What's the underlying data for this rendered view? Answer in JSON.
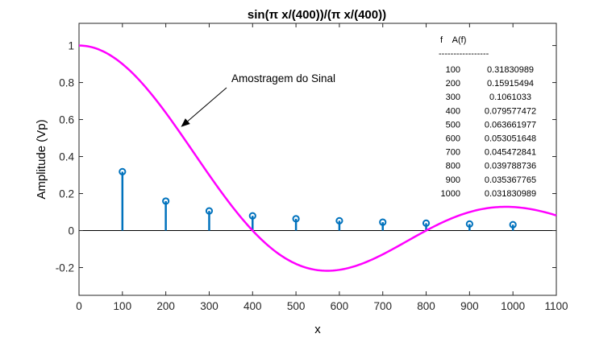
{
  "chart_data": {
    "type": "stem",
    "title": "sin(π x/(400))/(π x/(400))",
    "xlabel": "x",
    "ylabel": "Amplitude (Vp)",
    "xlim": [
      0,
      1100
    ],
    "ylim": [
      -0.35,
      1.12
    ],
    "xticks": [
      0,
      100,
      200,
      300,
      400,
      500,
      600,
      700,
      800,
      900,
      1000,
      1100
    ],
    "yticks": [
      -0.2,
      0,
      0.2,
      0.4,
      0.6,
      0.8,
      1
    ],
    "ytick_labels": [
      "-0.2",
      "0",
      "0.2",
      "0.4",
      "0.6",
      "0.8",
      "1"
    ],
    "grid": false,
    "series": [
      {
        "kind": "curve",
        "function": "sin(pi*x/400)/(pi*x/400)",
        "x_range": [
          0,
          1100
        ],
        "color": "#ff00ff"
      },
      {
        "kind": "stem",
        "color": "#0072bd",
        "x": [
          100,
          200,
          300,
          400,
          500,
          600,
          700,
          800,
          900,
          1000
        ],
        "y": [
          0.31830989,
          0.15915494,
          0.1061033,
          0.079577472,
          0.063661977,
          0.053051648,
          0.045472841,
          0.039788736,
          0.035367765,
          0.031830989
        ]
      }
    ],
    "annotation": {
      "text": "Amostragem do Sinal",
      "arrow_to": [
        235,
        0.56
      ]
    },
    "table": {
      "header": "f    A(f)",
      "separator": "-----------------",
      "rows": [
        [
          "100",
          "0.31830989"
        ],
        [
          "200",
          "0.15915494"
        ],
        [
          "300",
          "0.1061033"
        ],
        [
          "400",
          "0.079577472"
        ],
        [
          "500",
          "0.063661977"
        ],
        [
          "600",
          "0.053051648"
        ],
        [
          "700",
          "0.045472841"
        ],
        [
          "800",
          "0.039788736"
        ],
        [
          "900",
          "0.035367765"
        ],
        [
          "1000",
          "0.031830989"
        ]
      ]
    }
  }
}
